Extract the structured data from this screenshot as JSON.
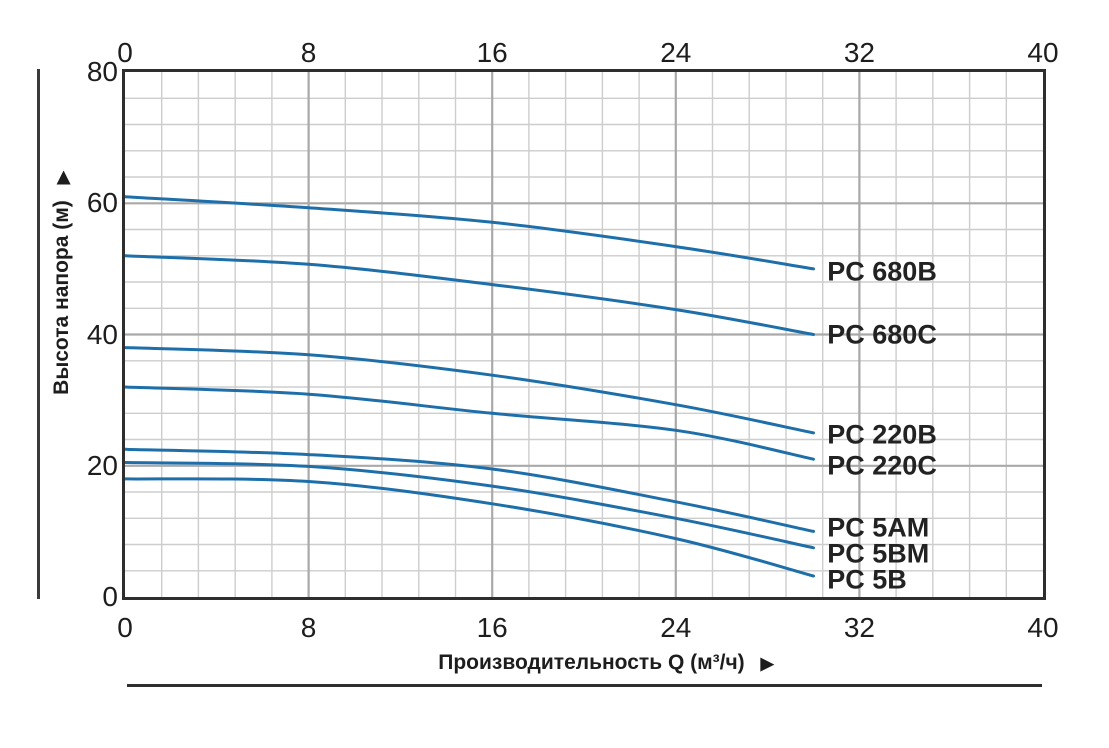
{
  "chart_data": {
    "type": "line",
    "title": "",
    "xlabel": "Производительность Q (м³/ч)",
    "ylabel": "Высота напора (м)",
    "xlim": [
      0,
      40
    ],
    "ylim": [
      0,
      80
    ],
    "x_ticks": [
      0,
      8,
      16,
      24,
      32,
      40
    ],
    "y_ticks": [
      80,
      60,
      40,
      20,
      0
    ],
    "x_minor_step": 1.6,
    "y_minor_step": 4,
    "grid": true,
    "tick_label_sides": [
      "top",
      "bottom",
      "left"
    ],
    "legend_position": "inline-right-of-curves",
    "series": [
      {
        "name": "PC 680B",
        "points": [
          [
            0,
            61
          ],
          [
            8,
            59.3
          ],
          [
            16,
            57.1
          ],
          [
            24,
            53.4
          ],
          [
            30,
            50
          ]
        ],
        "label_at": [
          30.6,
          49.5
        ]
      },
      {
        "name": "PC 680C",
        "points": [
          [
            0,
            52
          ],
          [
            8,
            50.7
          ],
          [
            16,
            47.6
          ],
          [
            24,
            43.8
          ],
          [
            30,
            40
          ]
        ],
        "label_at": [
          30.6,
          39.9
        ]
      },
      {
        "name": "PC 220B",
        "points": [
          [
            0,
            38
          ],
          [
            8,
            36.9
          ],
          [
            16,
            33.8
          ],
          [
            24,
            29.3
          ],
          [
            30,
            25
          ]
        ],
        "label_at": [
          30.6,
          24.7
        ]
      },
      {
        "name": "PC 220C",
        "points": [
          [
            0,
            32
          ],
          [
            8,
            30.9
          ],
          [
            16,
            28.0
          ],
          [
            24,
            25.4
          ],
          [
            30,
            21
          ]
        ],
        "label_at": [
          30.6,
          20.0
        ]
      },
      {
        "name": "PC 5AM",
        "points": [
          [
            0,
            22.5
          ],
          [
            8,
            21.7
          ],
          [
            16,
            19.5
          ],
          [
            24,
            14.5
          ],
          [
            30,
            10
          ]
        ],
        "label_at": [
          30.6,
          10.5
        ]
      },
      {
        "name": "PC 5BM",
        "points": [
          [
            0,
            20.5
          ],
          [
            8,
            19.9
          ],
          [
            16,
            16.9
          ],
          [
            24,
            12.0
          ],
          [
            30,
            7.5
          ]
        ],
        "label_at": [
          30.6,
          6.6
        ]
      },
      {
        "name": "PC 5B",
        "points": [
          [
            0,
            18
          ],
          [
            8,
            17.6
          ],
          [
            16,
            14.2
          ],
          [
            24,
            8.9
          ],
          [
            30,
            3.2
          ]
        ],
        "label_at": [
          30.6,
          2.6
        ]
      }
    ]
  },
  "colors": {
    "curve": "#1e6fa9",
    "grid_minor": "#cdcdcd",
    "grid_major": "#a9a9a9",
    "border": "#2e2e2e",
    "text": "#1d1d1d"
  },
  "icons": {
    "x_axis_arrow": "▶",
    "y_axis_arrow": "▶"
  }
}
